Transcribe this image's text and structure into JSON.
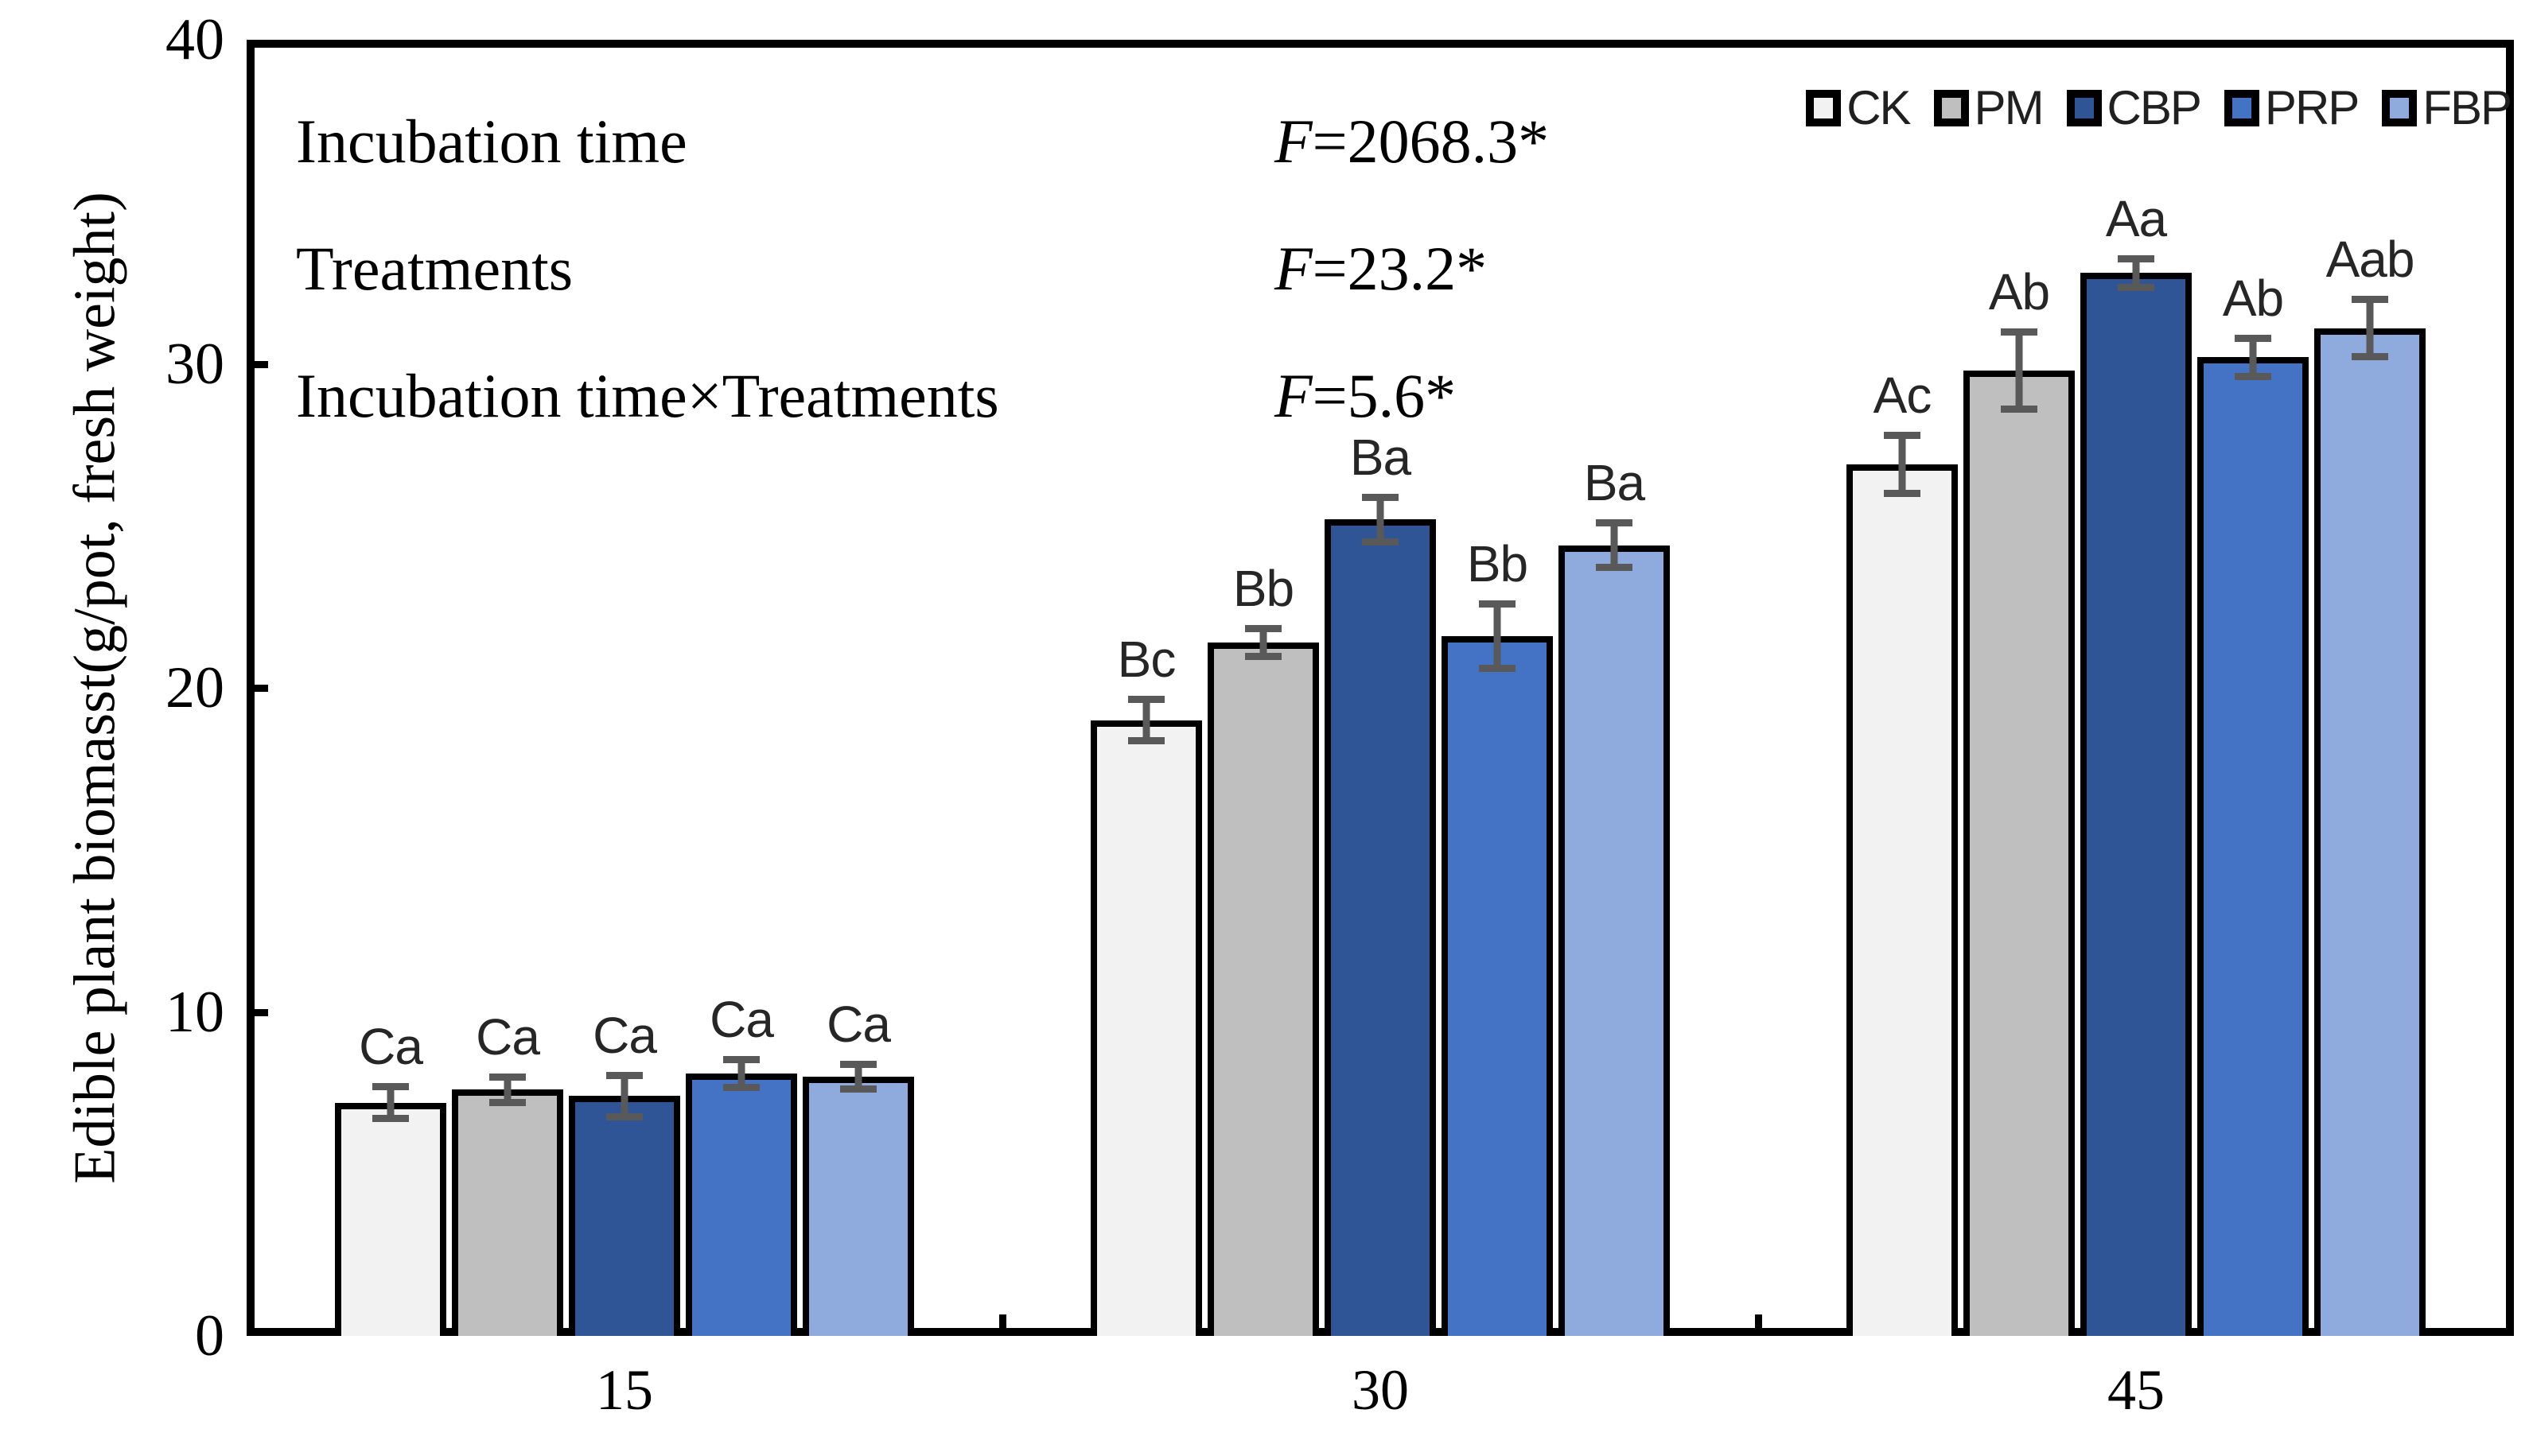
{
  "chart_data": {
    "type": "bar",
    "title": "",
    "categories": [
      "15",
      "30",
      "45"
    ],
    "series": [
      {
        "name": "CK",
        "color": "#F2F2F2",
        "values": [
          7.2,
          19.0,
          26.9
        ],
        "errors": [
          0.6,
          0.75,
          1.0
        ],
        "sig_letters": [
          "Ca",
          "Bc",
          "Ac"
        ]
      },
      {
        "name": "PM",
        "color": "#BFBFBF",
        "values": [
          7.6,
          21.4,
          29.8
        ],
        "errors": [
          0.5,
          0.55,
          1.3
        ],
        "sig_letters": [
          "Ca",
          "Bb",
          "Ab"
        ]
      },
      {
        "name": "CBP",
        "color": "#2F5597",
        "values": [
          7.4,
          25.2,
          32.8
        ],
        "errors": [
          0.75,
          0.8,
          0.55
        ],
        "sig_letters": [
          "Ca",
          "Ba",
          "Aa"
        ]
      },
      {
        "name": "PRP",
        "color": "#4472C4",
        "values": [
          8.1,
          21.6,
          30.2
        ],
        "errors": [
          0.55,
          1.1,
          0.7
        ],
        "sig_letters": [
          "Ca",
          "Bb",
          "Ab"
        ]
      },
      {
        "name": "FBP",
        "color": "#8FAADC",
        "values": [
          8.0,
          24.4,
          31.1
        ],
        "errors": [
          0.5,
          0.8,
          1.0
        ],
        "sig_letters": [
          "Ca",
          "Ba",
          "Aab"
        ]
      }
    ],
    "ylabel": "Edible plant biomasst(g/pot, fresh weight)",
    "xlabel": "",
    "ylim": [
      0,
      40
    ],
    "yticks": [
      0,
      10,
      20,
      30,
      40
    ],
    "grid": false,
    "legend_position": "top-right-inside",
    "bar_outline_color": "#000000",
    "error_bar_color": "#595959"
  },
  "annotations": {
    "rows": [
      {
        "label": "Incubation time",
        "f": "F",
        "value": "=2068.3*"
      },
      {
        "label": "Treatments",
        "f": "F",
        "value": "=23.2*"
      },
      {
        "label": "Incubation time×Treatments",
        "f": "F",
        "value": "=5.6*"
      }
    ]
  }
}
